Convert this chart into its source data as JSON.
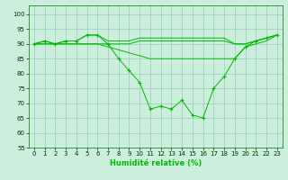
{
  "xlabel": "Humidité relative (%)",
  "bg_color": "#cceedd",
  "grid_color": "#99ccbb",
  "line_color": "#00bb00",
  "xlim": [
    -0.5,
    23.5
  ],
  "ylim": [
    55,
    103
  ],
  "yticks": [
    55,
    60,
    65,
    70,
    75,
    80,
    85,
    90,
    95,
    100
  ],
  "xticks": [
    0,
    1,
    2,
    3,
    4,
    5,
    6,
    7,
    8,
    9,
    10,
    11,
    12,
    13,
    14,
    15,
    16,
    17,
    18,
    19,
    20,
    21,
    22,
    23
  ],
  "line1_y": [
    90,
    91,
    90,
    91,
    91,
    93,
    93,
    91,
    91,
    91,
    92,
    92,
    92,
    92,
    92,
    92,
    92,
    92,
    92,
    90,
    90,
    91,
    92,
    93
  ],
  "line2_y": [
    90,
    91,
    90,
    91,
    91,
    93,
    93,
    90,
    85,
    81,
    77,
    68,
    69,
    68,
    71,
    66,
    65,
    75,
    79,
    85,
    89,
    91,
    92,
    93
  ],
  "line3_y": [
    90,
    90,
    90,
    90,
    90,
    90,
    90,
    90,
    90,
    90,
    91,
    91,
    91,
    91,
    91,
    91,
    91,
    91,
    91,
    90,
    90,
    91,
    92,
    93
  ],
  "line4_y": [
    90,
    90,
    90,
    90,
    90,
    90,
    90,
    89,
    88,
    87,
    86,
    85,
    85,
    85,
    85,
    85,
    85,
    85,
    85,
    85,
    89,
    90,
    91,
    93
  ]
}
